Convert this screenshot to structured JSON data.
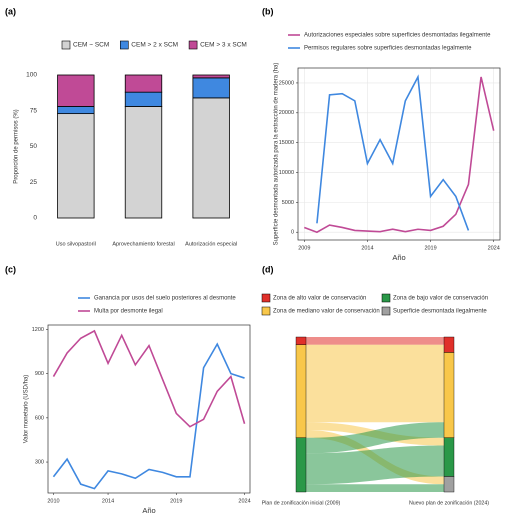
{
  "chart_data": [
    {
      "type": "stacked_bar",
      "label": "(a)",
      "ylabel": "Proporción de permisos (%)",
      "categories": [
        "Uso silvopastoril",
        "Aprovechamiento forestal",
        "Autorización especial"
      ],
      "series": [
        {
          "name": "CEM ~ SCM",
          "color": "#d3d3d3",
          "values": [
            73,
            78,
            84
          ]
        },
        {
          "name": "CEM > 2 x SCM",
          "color": "#3f88e0",
          "values": [
            5,
            10,
            14
          ]
        },
        {
          "name": "CEM > 3 x SCM",
          "color": "#c04a96",
          "values": [
            22,
            12,
            2
          ]
        }
      ],
      "ylim": [
        0,
        100
      ],
      "yticks": [
        0,
        25,
        50,
        75,
        100
      ]
    },
    {
      "type": "line",
      "label": "(b)",
      "ylabel": "Superficie desmontada autorizada para la extracción de madera (ha)",
      "xlabel": "Año",
      "x": [
        2009,
        2010,
        2011,
        2012,
        2013,
        2014,
        2015,
        2016,
        2017,
        2018,
        2019,
        2020,
        2021,
        2022,
        2023,
        2024
      ],
      "series": [
        {
          "name": "Autorizaciones especiales sobre superficies desmontadas ilegalmente",
          "color": "#c04a96",
          "values": [
            800,
            0,
            1200,
            800,
            300,
            200,
            100,
            500,
            100,
            500,
            300,
            1000,
            3000,
            8000,
            26000,
            17000
          ]
        },
        {
          "name": "Permisos regulares sobre superficies desmontadas legalmente",
          "color": "#3f88e0",
          "values": [
            null,
            1500,
            23000,
            23200,
            22000,
            11500,
            15500,
            11500,
            22000,
            26000,
            6000,
            8800,
            6000,
            300,
            null,
            null
          ]
        }
      ],
      "xlim": [
        2008.5,
        2024.5
      ],
      "xticks": [
        2009,
        2014,
        2019,
        2024
      ],
      "ylim": [
        -1300,
        27500
      ],
      "yticks": [
        0,
        5000,
        10000,
        15000,
        20000,
        25000
      ],
      "grid": true
    },
    {
      "type": "line",
      "label": "(c)",
      "ylabel": "Valor monetario (USD/ha)",
      "xlabel": "Año",
      "x": [
        2010,
        2011,
        2012,
        2013,
        2014,
        2015,
        2016,
        2017,
        2018,
        2019,
        2020,
        2021,
        2022,
        2023,
        2024
      ],
      "series": [
        {
          "name": "Ganancia por usos del suelo posteriores al desmonte",
          "color": "#3f88e0",
          "values": [
            200,
            320,
            150,
            120,
            240,
            220,
            190,
            250,
            230,
            200,
            200,
            940,
            1100,
            900,
            870
          ]
        },
        {
          "name": "Multa por desmonte ilegal",
          "color": "#c04a96",
          "values": [
            880,
            1040,
            1140,
            1190,
            970,
            1160,
            960,
            1090,
            860,
            630,
            540,
            590,
            780,
            880,
            560
          ]
        }
      ],
      "xlim": [
        2009.6,
        2024.4
      ],
      "xticks": [
        2010,
        2014,
        2019,
        2024
      ],
      "ylim": [
        90,
        1230
      ],
      "yticks": [
        300,
        600,
        900,
        1200
      ],
      "grid": false
    },
    {
      "type": "sankey",
      "label": "(d)",
      "source_label": "Plan de zonificación inicial (2009)",
      "target_label": "Nuevo plan de zonificación (2024)",
      "series": [
        {
          "name": "Zona de alto valor de conservación",
          "color": "#e0302a",
          "values": [
            5,
            0,
            0,
            0
          ]
        },
        {
          "name": "Zona de mediano valor de conservación",
          "color": "#f8c74a",
          "values": [
            5,
            45,
            5,
            5
          ]
        },
        {
          "name": "Zona de bajo valor de conservación",
          "color": "#2a9848",
          "values": [
            0,
            10,
            20,
            5
          ]
        },
        {
          "name": "Superficie desmontada ilegalmente",
          "color": "#a0a0a0",
          "values": [
            0,
            0,
            0,
            0
          ]
        }
      ]
    }
  ]
}
